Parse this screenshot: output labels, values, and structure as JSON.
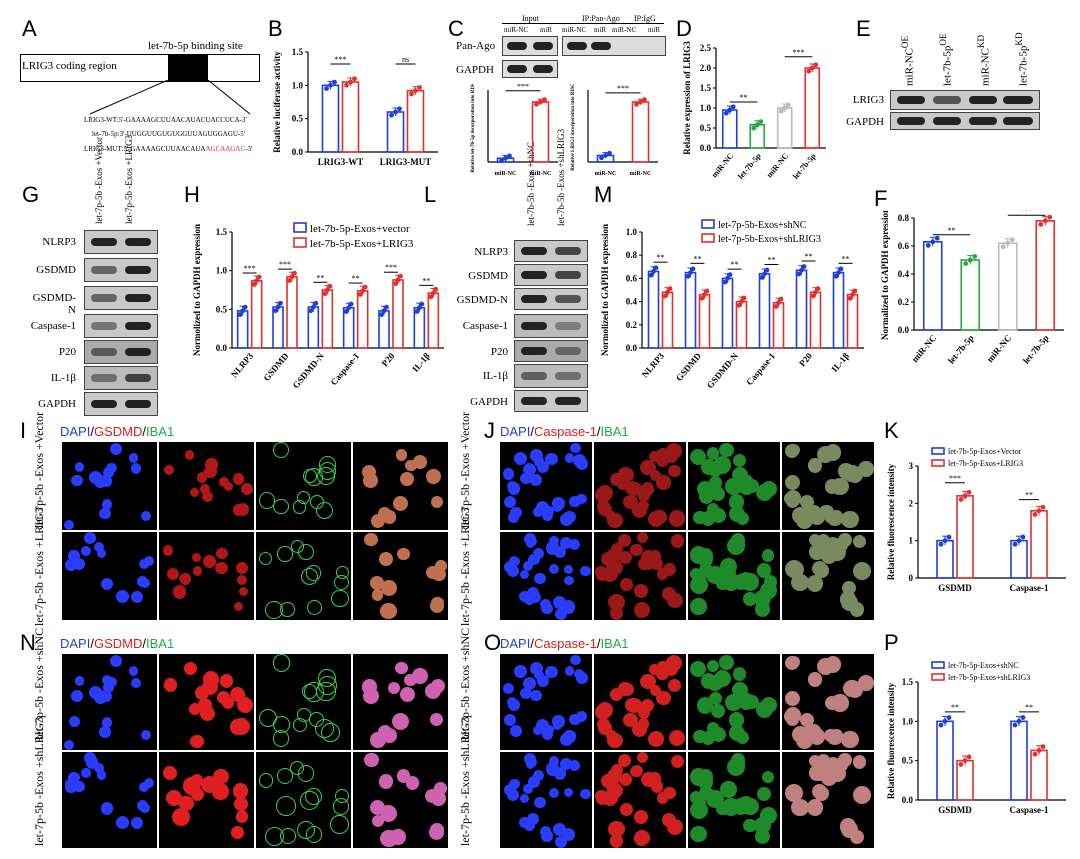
{
  "panels": [
    "A",
    "B",
    "C",
    "D",
    "E",
    "F",
    "G",
    "H",
    "I",
    "J",
    "K",
    "L",
    "M",
    "N",
    "O",
    "P"
  ],
  "panel_a": {
    "region": "LRIG3 coding region",
    "site": "let-7b-5p binding site",
    "wt": "LRIG3-WT:5'-GAAAAGCUUAACAUACUACCUCA-3'",
    "mir": "let-7b-5p:3'-UUGGUUGUGUGGUUAGUGGAGU-5'",
    "mut_prefix": "LRIG3-MUT:5'-GAAAAGCUUAACAUA",
    "mut_red": "AGCAAGAC",
    "mut_suffix": "-3'"
  },
  "panel_c_labels": {
    "input": "Input",
    "ip_ago": "IP:Pan-Ago",
    "ip_igg": "IP:IgG",
    "pan_ago": "Pan-Ago",
    "gapdh": "GAPDH",
    "cols": [
      "miR-NC",
      "miR",
      "miR-NC",
      "miR",
      "miR-NC",
      "miR"
    ]
  },
  "blot_e": {
    "cols": [
      "miR-NC",
      "let-7b-5p",
      "miR-NC",
      "let-7b-5p"
    ],
    "sup": [
      "OE",
      "OE",
      "KD",
      "KD"
    ],
    "rows": [
      "LRIG3",
      "GAPDH"
    ]
  },
  "blot_g": {
    "cols": [
      "let-7p-5b -Exos +Vector",
      "let-7p-5b -Exos +LRIG3"
    ],
    "rows": [
      "NLRP3",
      "GSDMD",
      "GSDMD-N",
      "Caspase-1",
      "P20",
      "IL-1β",
      "GAPDH"
    ]
  },
  "blot_l": {
    "cols": [
      "let-7b-5b -Exos +shNC",
      "let-7b-5b -Exos +shLRIG3"
    ],
    "rows": [
      "NLRP3",
      "GSDMD",
      "GSDMD-N",
      "Caspase-1",
      "P20",
      "IL-1β",
      "GAPDH"
    ]
  },
  "micro_titles": {
    "I": [
      "DAPI",
      "/",
      "GSDMD",
      "/",
      "IBA1"
    ],
    "J": [
      "DAPI",
      "/",
      "Caspase-1",
      "/",
      "IBA1"
    ],
    "N": [
      "DAPI",
      "/",
      "GSDMD",
      "/",
      "IBA1"
    ],
    "O": [
      "DAPI",
      "/",
      "Caspase-1",
      "/",
      "IBA1"
    ]
  },
  "row_labels": {
    "I1": "let-7p-5b  -Exos +Vector",
    "I2": "let-7p-5b  -Exos +LRIG3",
    "N1": "let-7p-5b  -Exos +shNC",
    "N2": "let-7p-5b  -Exos +shLRIG3"
  },
  "colors": {
    "blue": "#1f3fd6",
    "red": "#e03030",
    "green": "#22aa44",
    "grey": "#bbbbbb"
  },
  "chart_data": [
    {
      "id": "B",
      "type": "bar",
      "categories": [
        "LRIG3-WT",
        "LRIG3-MUT"
      ],
      "series": [
        {
          "name": "",
          "values": [
            1.0,
            0.6
          ]
        },
        {
          "name": "",
          "values": [
            1.05,
            0.92
          ]
        }
      ],
      "ylabel": "Relative luciferase activity",
      "ylim": [
        0,
        1.5
      ],
      "yticks": [
        "0.0",
        "0.5",
        "1.0",
        "1.5"
      ],
      "sig": [
        "***",
        "ns"
      ]
    },
    {
      "id": "C1",
      "type": "bar",
      "categories": [
        "miR-NC",
        "miR-NC"
      ],
      "values": [
        1,
        16
      ],
      "ylabel": "Relative let-7b-5p incorporation into RISCs",
      "sig": [
        "***"
      ]
    },
    {
      "id": "C2",
      "type": "bar",
      "categories": [
        "miR-NC",
        "miR-NC"
      ],
      "values": [
        1,
        9.2
      ],
      "ylabel": "Relative LRIG3 incorporation into RISCs",
      "sig": [
        "***"
      ]
    },
    {
      "id": "D",
      "type": "bar",
      "categories": [
        "miR-NC",
        "let-7b-5p",
        "miR-NC",
        "let-7b-5p"
      ],
      "values": [
        0.95,
        0.58,
        1.0,
        2.0
      ],
      "ylabel": "Relative expression of LRIG3",
      "ylim": [
        0,
        2.5
      ],
      "yticks": [
        "0.0",
        "0.5",
        "1.0",
        "1.5",
        "2.0",
        "2.5"
      ],
      "sig": [
        "**",
        "***"
      ]
    },
    {
      "id": "F",
      "type": "bar",
      "categories": [
        "miR-NC",
        "let-7b-5p",
        "miR-NC",
        "let-7b-5p"
      ],
      "values": [
        0.63,
        0.5,
        0.62,
        0.78
      ],
      "ylabel": "Normalized to GAPDH expression",
      "ylim": [
        0,
        0.8
      ],
      "yticks": [
        "0.0",
        "0.2",
        "0.4",
        "0.6",
        "0.8"
      ],
      "sig": [
        "**",
        "***"
      ]
    },
    {
      "id": "H",
      "type": "bar",
      "categories": [
        "NLRP3",
        "GSDMD",
        "GSDMD-N",
        "Caspase-1",
        "P20",
        "IL-1β"
      ],
      "series": [
        {
          "name": "let-7b-5p-Exos+vector",
          "values": [
            0.48,
            0.53,
            0.53,
            0.52,
            0.48,
            0.52
          ]
        },
        {
          "name": "let-7b-5p-Exos+LRIG3",
          "values": [
            0.87,
            0.92,
            0.75,
            0.74,
            0.88,
            0.71
          ]
        }
      ],
      "ylabel": "Normolized to GAPDH expression",
      "ylim": [
        0,
        1.5
      ],
      "yticks": [
        "0.0",
        "0.5",
        "1.0",
        "1.5"
      ],
      "sig": [
        "***",
        "***",
        "**",
        "**",
        "***",
        "**"
      ],
      "legend": "top-right"
    },
    {
      "id": "M",
      "type": "bar",
      "categories": [
        "NLRP3",
        "GSDMD",
        "GSDMD-N",
        "Caspase-1",
        "P20",
        "IL-1β"
      ],
      "series": [
        {
          "name": "let-7p-5b-Exos+shNC",
          "values": [
            0.66,
            0.65,
            0.6,
            0.64,
            0.67,
            0.65
          ]
        },
        {
          "name": "let-7p-5b-Exos+shLRIG3",
          "values": [
            0.48,
            0.46,
            0.4,
            0.39,
            0.48,
            0.46
          ]
        }
      ],
      "ylabel": "Normolized to GAPDH expression",
      "ylim": [
        0,
        1.0
      ],
      "yticks": [
        "0.0",
        "0.2",
        "0.4",
        "0.6",
        "0.8",
        "1.0"
      ],
      "sig": [
        "**",
        "**",
        "**",
        "**",
        "**",
        "**"
      ],
      "legend": "top-right"
    },
    {
      "id": "K",
      "type": "bar",
      "categories": [
        "GSDMD",
        "Caspase-1"
      ],
      "series": [
        {
          "name": "let-7b-5p-Exos+Vector",
          "values": [
            1.0,
            1.0
          ]
        },
        {
          "name": "let-7b-5p-Exos+LRIG3",
          "values": [
            2.2,
            1.8
          ]
        }
      ],
      "ylabel": "Relative fluorescence intensity",
      "ylim": [
        0,
        3
      ],
      "yticks": [
        "0",
        "1",
        "2",
        "3"
      ],
      "sig": [
        "***",
        "**"
      ],
      "legend": "top"
    },
    {
      "id": "P",
      "type": "bar",
      "categories": [
        "GSDMD",
        "Caspase-1"
      ],
      "series": [
        {
          "name": "let-7b-5p-Exos+shNC",
          "values": [
            1.0,
            1.0
          ]
        },
        {
          "name": "let-7b-5p-Exos+shLRIG3",
          "values": [
            0.5,
            0.63
          ]
        }
      ],
      "ylabel": "Relative fluorescence intensity",
      "ylim": [
        0,
        1.5
      ],
      "yticks": [
        "0.0",
        "0.5",
        "1.0",
        "1.5"
      ],
      "sig": [
        "**",
        "**"
      ],
      "legend": "top"
    }
  ]
}
